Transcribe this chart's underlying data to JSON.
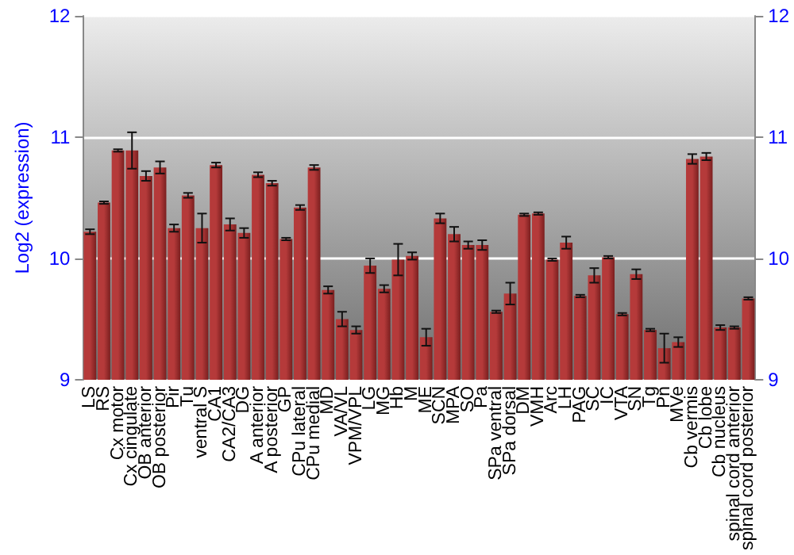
{
  "chart_data": {
    "type": "bar",
    "ylabel": "Log2 (expression)",
    "categories": [
      "LS",
      "RS",
      "Cx motor",
      "Cx cingulate",
      "OB anterior",
      "OB posterior",
      "Pir",
      "Tu",
      "ventral S",
      "CA1",
      "CA2/CA3",
      "DG",
      "A anterior",
      "A posterior",
      "GP",
      "CPu lateral",
      "CPu medial",
      "MD",
      "VA/VL",
      "VPM/VPL",
      "LG",
      "MG",
      "Hb",
      "M",
      "ME",
      "SCN",
      "MPA",
      "SO",
      "Pa",
      "SPa ventral",
      "SPa dorsal",
      "DM",
      "VMH",
      "Arc",
      "LH",
      "PAG",
      "SC",
      "IC",
      "VTA",
      "SN",
      "Tg",
      "Pn",
      "MVe",
      "Cb vermis",
      "Cb lobe",
      "Cb nucleus",
      "spinal cord anterior",
      "spinal cord posterior"
    ],
    "values": [
      10.22,
      10.46,
      10.89,
      10.89,
      10.68,
      10.75,
      10.25,
      10.52,
      10.25,
      10.77,
      10.28,
      10.21,
      10.69,
      10.62,
      10.16,
      10.42,
      10.75,
      9.74,
      9.5,
      9.41,
      9.94,
      9.75,
      9.99,
      10.02,
      9.35,
      10.33,
      10.2,
      10.11,
      10.11,
      9.56,
      9.71,
      10.36,
      10.37,
      9.99,
      10.13,
      9.69,
      9.86,
      10.01,
      9.54,
      9.87,
      9.41,
      9.26,
      9.31,
      10.82,
      10.84,
      9.43,
      9.43,
      9.67
    ],
    "errors": [
      0.02,
      0.01,
      0.01,
      0.15,
      0.04,
      0.05,
      0.03,
      0.02,
      0.12,
      0.02,
      0.05,
      0.04,
      0.02,
      0.02,
      0.01,
      0.02,
      0.02,
      0.03,
      0.06,
      0.03,
      0.06,
      0.03,
      0.13,
      0.03,
      0.07,
      0.04,
      0.06,
      0.03,
      0.04,
      0.01,
      0.09,
      0.01,
      0.01,
      0.01,
      0.05,
      0.01,
      0.06,
      0.01,
      0.01,
      0.04,
      0.01,
      0.12,
      0.04,
      0.04,
      0.03,
      0.02,
      0.01,
      0.01
    ],
    "color": "#b53a3a",
    "ylim": [
      9,
      12
    ],
    "yticks": [
      9,
      10,
      11,
      12
    ],
    "y2lim": [
      9,
      12
    ],
    "y2ticks": [
      9,
      10,
      11,
      12
    ],
    "grid": "y"
  }
}
